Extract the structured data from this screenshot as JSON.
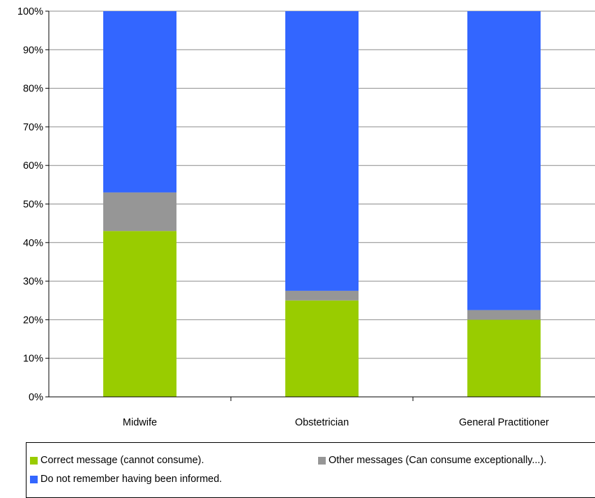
{
  "chart_data": {
    "type": "bar",
    "stacked": true,
    "percent": true,
    "categories": [
      "Midwife",
      "Obstetrician",
      "General Practitioner"
    ],
    "series": [
      {
        "name": "Correct message (cannot consume).",
        "color": "#99CC00",
        "values": [
          43,
          25,
          20
        ]
      },
      {
        "name": "Other messages (Can consume exceptionally...).",
        "color": "#969696",
        "values": [
          10,
          2.5,
          2.5
        ]
      },
      {
        "name": "Do not remember having been informed.",
        "color": "#3366FF",
        "values": [
          47,
          72.5,
          77.5
        ]
      }
    ],
    "y_ticks": [
      "0%",
      "10%",
      "20%",
      "30%",
      "40%",
      "50%",
      "60%",
      "70%",
      "80%",
      "90%",
      "100%"
    ],
    "ylim": [
      0,
      100
    ],
    "grid": true,
    "legend_position": "bottom"
  }
}
